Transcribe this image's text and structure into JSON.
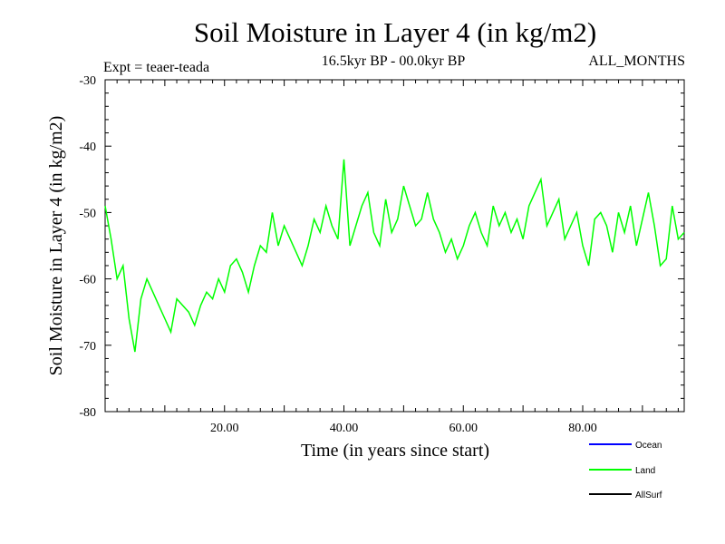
{
  "chart_data": {
    "type": "line",
    "title": "Soil Moisture in Layer 4 (in kg/m2)",
    "subtitle_left": "Expt = teaer-teada",
    "subtitle_center": "16.5kyr BP - 00.0kyr BP",
    "subtitle_right": "ALL_MONTHS",
    "xlabel": "Time (in years since start)",
    "ylabel": "Soil Moisture in Layer 4 (in kg/m2)",
    "xlim": [
      0,
      97
    ],
    "ylim": [
      -80,
      -30
    ],
    "x_ticks": [
      20,
      40,
      60,
      80
    ],
    "x_tick_labels": [
      "20.00",
      "40.00",
      "60.00",
      "80.00"
    ],
    "y_ticks": [
      -80,
      -70,
      -60,
      -50,
      -40,
      -30
    ],
    "y_tick_labels": [
      "-80",
      "-70",
      "-60",
      "-50",
      "-40",
      "-30"
    ],
    "legend": [
      {
        "name": "Ocean",
        "color": "#0000ff"
      },
      {
        "name": "Land",
        "color": "#00ff00"
      },
      {
        "name": "AllSurf",
        "color": "#000000"
      }
    ],
    "series": [
      {
        "name": "Land",
        "color": "#00ff00",
        "x": [
          0,
          1,
          2,
          3,
          4,
          5,
          6,
          7,
          8,
          9,
          10,
          11,
          12,
          13,
          14,
          15,
          16,
          17,
          18,
          19,
          20,
          21,
          22,
          23,
          24,
          25,
          26,
          27,
          28,
          29,
          30,
          31,
          32,
          33,
          34,
          35,
          36,
          37,
          38,
          39,
          40,
          41,
          42,
          43,
          44,
          45,
          46,
          47,
          48,
          49,
          50,
          51,
          52,
          53,
          54,
          55,
          56,
          57,
          58,
          59,
          60,
          61,
          62,
          63,
          64,
          65,
          66,
          67,
          68,
          69,
          70,
          71,
          72,
          73,
          74,
          75,
          76,
          77,
          78,
          79,
          80,
          81,
          82,
          83,
          84,
          85,
          86,
          87,
          88,
          89,
          90,
          91,
          92,
          93,
          94,
          95,
          96,
          97
        ],
        "values": [
          -49,
          -54,
          -60,
          -58,
          -66,
          -71,
          -63,
          -60,
          -62,
          -64,
          -66,
          -68,
          -63,
          -64,
          -65,
          -67,
          -64,
          -62,
          -63,
          -60,
          -62,
          -58,
          -57,
          -59,
          -62,
          -58,
          -55,
          -56,
          -50,
          -55,
          -52,
          -54,
          -56,
          -58,
          -55,
          -51,
          -53,
          -49,
          -52,
          -54,
          -42,
          -55,
          -52,
          -49,
          -47,
          -53,
          -55,
          -48,
          -53,
          -51,
          -46,
          -49,
          -52,
          -51,
          -47,
          -51,
          -53,
          -56,
          -54,
          -57,
          -55,
          -52,
          -50,
          -53,
          -55,
          -49,
          -52,
          -50,
          -53,
          -51,
          -54,
          -49,
          -47,
          -45,
          -52,
          -50,
          -48,
          -54,
          -52,
          -50,
          -55,
          -58,
          -51,
          -50,
          -52,
          -56,
          -50,
          -53,
          -49,
          -55,
          -51,
          -47,
          -52,
          -58,
          -57,
          -49,
          -54,
          -53
        ]
      }
    ]
  }
}
